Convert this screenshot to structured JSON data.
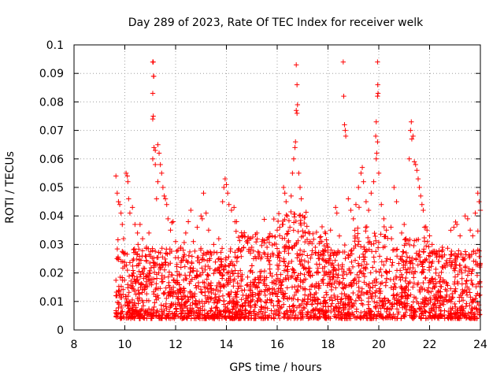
{
  "chart_data": {
    "type": "scatter",
    "title": "Day 289 of 2023, Rate Of TEC Index for receiver welk",
    "xlabel": "GPS time / hours",
    "ylabel": "ROTI / TECUs",
    "xlim": [
      8,
      24
    ],
    "ylim": [
      0,
      0.1
    ],
    "x_ticks": [
      8,
      10,
      12,
      14,
      16,
      18,
      20,
      22,
      24
    ],
    "x_tick_labels": [
      "8",
      "10",
      "12",
      "14",
      "16",
      "18",
      "20",
      "22",
      "24"
    ],
    "y_ticks": [
      0,
      0.01,
      0.02,
      0.03,
      0.04,
      0.05,
      0.06,
      0.07,
      0.08,
      0.09,
      0.1
    ],
    "y_tick_labels": [
      "0",
      "0.01",
      "0.02",
      "0.03",
      "0.04",
      "0.05",
      "0.06",
      "0.07",
      "0.08",
      "0.09",
      "0.1"
    ],
    "grid": true,
    "marker": "+",
    "color": "#ff0000",
    "series": [
      {
        "values": [
          [
            9.65,
            0.054
          ],
          [
            9.7,
            0.048
          ],
          [
            9.75,
            0.045
          ],
          [
            9.8,
            0.044
          ],
          [
            9.85,
            0.041
          ],
          [
            9.9,
            0.037
          ],
          [
            9.95,
            0.032
          ],
          [
            10.05,
            0.055
          ],
          [
            10.1,
            0.054
          ],
          [
            10.12,
            0.052
          ],
          [
            10.15,
            0.046
          ],
          [
            10.2,
            0.041
          ],
          [
            10.3,
            0.043
          ],
          [
            10.4,
            0.037
          ],
          [
            10.5,
            0.034
          ],
          [
            10.6,
            0.037
          ],
          [
            10.7,
            0.032
          ],
          [
            10.85,
            0.029
          ],
          [
            10.95,
            0.034
          ],
          [
            11.1,
            0.094
          ],
          [
            11.12,
            0.094
          ],
          [
            11.13,
            0.089
          ],
          [
            11.14,
            0.089
          ],
          [
            11.1,
            0.083
          ],
          [
            11.12,
            0.075
          ],
          [
            11.1,
            0.074
          ],
          [
            11.15,
            0.064
          ],
          [
            11.2,
            0.063
          ],
          [
            11.1,
            0.06
          ],
          [
            11.2,
            0.058
          ],
          [
            11.3,
            0.065
          ],
          [
            11.35,
            0.062
          ],
          [
            11.4,
            0.058
          ],
          [
            11.45,
            0.055
          ],
          [
            11.5,
            0.05
          ],
          [
            11.55,
            0.047
          ],
          [
            11.6,
            0.046
          ],
          [
            11.65,
            0.044
          ],
          [
            11.3,
            0.052
          ],
          [
            11.25,
            0.046
          ],
          [
            11.7,
            0.039
          ],
          [
            11.8,
            0.035
          ],
          [
            11.9,
            0.038
          ],
          [
            12.0,
            0.031
          ],
          [
            12.2,
            0.029
          ],
          [
            12.4,
            0.034
          ],
          [
            12.5,
            0.038
          ],
          [
            12.6,
            0.042
          ],
          [
            12.7,
            0.031
          ],
          [
            12.85,
            0.036
          ],
          [
            13.0,
            0.04
          ],
          [
            13.05,
            0.039
          ],
          [
            13.1,
            0.048
          ],
          [
            13.2,
            0.041
          ],
          [
            13.3,
            0.035
          ],
          [
            13.5,
            0.03
          ],
          [
            13.7,
            0.032
          ],
          [
            13.85,
            0.045
          ],
          [
            13.9,
            0.05
          ],
          [
            13.95,
            0.053
          ],
          [
            14.0,
            0.051
          ],
          [
            14.05,
            0.048
          ],
          [
            14.1,
            0.044
          ],
          [
            14.2,
            0.042
          ],
          [
            14.3,
            0.043
          ],
          [
            14.4,
            0.038
          ],
          [
            14.6,
            0.033
          ],
          [
            14.8,
            0.031
          ],
          [
            15.0,
            0.029
          ],
          [
            15.2,
            0.034
          ],
          [
            15.4,
            0.031
          ],
          [
            15.6,
            0.029
          ],
          [
            15.8,
            0.033
          ],
          [
            16.0,
            0.035
          ],
          [
            16.1,
            0.036
          ],
          [
            16.2,
            0.037
          ],
          [
            16.25,
            0.05
          ],
          [
            16.3,
            0.048
          ],
          [
            16.35,
            0.045
          ],
          [
            16.4,
            0.04
          ],
          [
            16.5,
            0.036
          ],
          [
            16.55,
            0.047
          ],
          [
            16.6,
            0.055
          ],
          [
            16.65,
            0.06
          ],
          [
            16.7,
            0.064
          ],
          [
            16.72,
            0.066
          ],
          [
            16.75,
            0.077
          ],
          [
            16.78,
            0.076
          ],
          [
            16.8,
            0.079
          ],
          [
            16.75,
            0.093
          ],
          [
            16.78,
            0.086
          ],
          [
            16.85,
            0.055
          ],
          [
            16.9,
            0.05
          ],
          [
            16.95,
            0.046
          ],
          [
            17.0,
            0.04
          ],
          [
            17.1,
            0.034
          ],
          [
            17.3,
            0.031
          ],
          [
            17.5,
            0.029
          ],
          [
            17.7,
            0.031
          ],
          [
            17.9,
            0.028
          ],
          [
            18.1,
            0.035
          ],
          [
            18.3,
            0.043
          ],
          [
            18.35,
            0.041
          ],
          [
            18.6,
            0.094
          ],
          [
            18.62,
            0.082
          ],
          [
            18.65,
            0.072
          ],
          [
            18.68,
            0.07
          ],
          [
            18.7,
            0.068
          ],
          [
            18.8,
            0.046
          ],
          [
            18.9,
            0.042
          ],
          [
            19.0,
            0.039
          ],
          [
            19.1,
            0.044
          ],
          [
            19.2,
            0.05
          ],
          [
            19.3,
            0.055
          ],
          [
            19.35,
            0.057
          ],
          [
            19.4,
            0.052
          ],
          [
            19.5,
            0.045
          ],
          [
            19.6,
            0.042
          ],
          [
            19.7,
            0.048
          ],
          [
            19.8,
            0.052
          ],
          [
            19.9,
            0.06
          ],
          [
            19.92,
            0.062
          ],
          [
            19.95,
            0.066
          ],
          [
            19.88,
            0.068
          ],
          [
            19.9,
            0.073
          ],
          [
            19.95,
            0.082
          ],
          [
            19.97,
            0.083
          ],
          [
            19.96,
            0.086
          ],
          [
            19.95,
            0.094
          ],
          [
            20.0,
            0.055
          ],
          [
            20.1,
            0.044
          ],
          [
            20.2,
            0.039
          ],
          [
            20.3,
            0.035
          ],
          [
            20.5,
            0.032
          ],
          [
            20.6,
            0.05
          ],
          [
            20.7,
            0.045
          ],
          [
            20.9,
            0.034
          ],
          [
            21.0,
            0.037
          ],
          [
            21.2,
            0.06
          ],
          [
            21.25,
            0.07
          ],
          [
            21.28,
            0.073
          ],
          [
            21.3,
            0.067
          ],
          [
            21.35,
            0.068
          ],
          [
            21.4,
            0.059
          ],
          [
            21.45,
            0.058
          ],
          [
            21.5,
            0.056
          ],
          [
            21.55,
            0.053
          ],
          [
            21.6,
            0.05
          ],
          [
            21.65,
            0.047
          ],
          [
            21.7,
            0.044
          ],
          [
            21.75,
            0.042
          ],
          [
            21.8,
            0.036
          ],
          [
            21.9,
            0.035
          ],
          [
            22.0,
            0.033
          ],
          [
            22.1,
            0.03
          ],
          [
            22.3,
            0.027
          ],
          [
            22.5,
            0.029
          ],
          [
            22.8,
            0.025
          ],
          [
            23.0,
            0.026
          ],
          [
            23.2,
            0.033
          ],
          [
            23.4,
            0.04
          ],
          [
            23.5,
            0.039
          ],
          [
            23.6,
            0.035
          ],
          [
            23.7,
            0.033
          ],
          [
            23.8,
            0.041
          ],
          [
            23.9,
            0.048
          ],
          [
            23.95,
            0.045
          ],
          [
            24.0,
            0.042
          ]
        ]
      }
    ]
  }
}
